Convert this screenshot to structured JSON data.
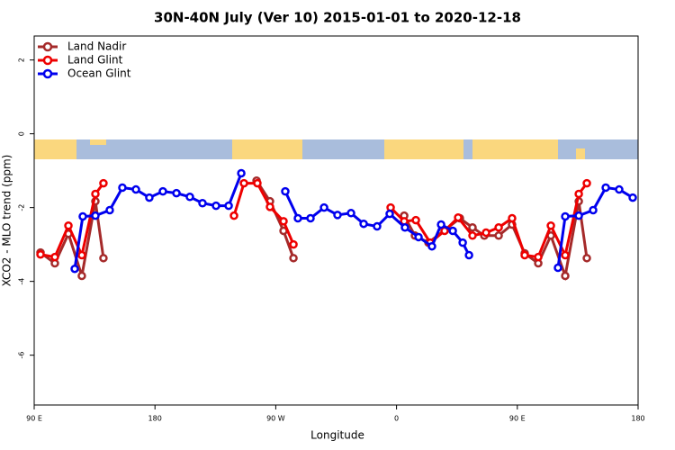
{
  "chart_data": {
    "type": "line",
    "title": "30N-40N July (Ver 10)   2015-01-01 to 2020-12-18",
    "x_label": "Longitude",
    "y_label": "XCO2 - MLO trend (ppm)",
    "xlim": [
      90,
      540
    ],
    "ylim": [
      -7.35,
      2.65
    ],
    "xticks": [
      {
        "value": 90,
        "label": "90 E"
      },
      {
        "value": 180,
        "label": "180"
      },
      {
        "value": 270,
        "label": "90 W"
      },
      {
        "value": 360,
        "label": "0"
      },
      {
        "value": 450,
        "label": "90 E"
      },
      {
        "value": 540,
        "label": "180"
      }
    ],
    "yticks": [
      2,
      0,
      -2,
      -4,
      -6
    ],
    "legend": "top-left",
    "series": [
      {
        "name": "Land Nadir",
        "color": "#a52a2a",
        "x": [
          94.7,
          105.4,
          115.5,
          125.5,
          135.6,
          141.6,
          null,
          255.7,
          265.7,
          275.8,
          283.2,
          null,
          365.7,
          373.7,
          383.8,
          407.2,
          416.6,
          425.4,
          436.1,
          446.1,
          455.5,
          465.6,
          475.0,
          485.7,
          495.8,
          501.8
        ],
        "values": [
          -3.22,
          -3.51,
          -2.71,
          -3.85,
          -1.83,
          -3.37,
          null,
          -1.27,
          -1.83,
          -2.63,
          -3.37,
          null,
          -2.22,
          -2.76,
          -2.95,
          -2.29,
          -2.54,
          -2.76,
          -2.76,
          -2.46,
          -3.24,
          -3.51,
          -2.76,
          -3.85,
          -1.83,
          -3.37
        ]
      },
      {
        "name": "Land Glint",
        "color": "#ee0000",
        "x": [
          94.7,
          105.4,
          115.5,
          125.5,
          135.6,
          141.6,
          null,
          238.9,
          246.3,
          256.3,
          265.7,
          275.8,
          283.2,
          null,
          355.6,
          365.7,
          374.4,
          385.1,
          395.8,
          405.9,
          416.6,
          426.7,
          436.1,
          446.1,
          455.5,
          465.6,
          475.0,
          485.7,
          495.8,
          501.8
        ],
        "values": [
          -3.27,
          -3.34,
          -2.49,
          -3.29,
          -1.63,
          -1.34,
          null,
          -2.22,
          -1.34,
          -1.34,
          -1.98,
          -2.37,
          -3.0,
          null,
          -2.0,
          -2.37,
          -2.34,
          -2.95,
          -2.63,
          -2.27,
          -2.76,
          -2.68,
          -2.54,
          -2.29,
          -3.29,
          -3.34,
          -2.49,
          -3.29,
          -1.63,
          -1.34
        ]
      },
      {
        "name": "Ocean Glint",
        "color": "#0000ee",
        "x": [
          120.2,
          126.2,
          135.6,
          146.3,
          155.7,
          165.8,
          175.8,
          185.9,
          196.0,
          206.0,
          215.4,
          225.5,
          234.9,
          244.3,
          null,
          277.1,
          286.5,
          295.9,
          306.0,
          316.0,
          326.1,
          335.5,
          345.5,
          354.9,
          366.3,
          376.4,
          386.4,
          393.2,
          401.9,
          409.3,
          414.0,
          null,
          480.3,
          485.7,
          495.8,
          506.5,
          515.9,
          525.9,
          536.0
        ],
        "values": [
          -3.66,
          -2.24,
          -2.22,
          -2.07,
          -1.46,
          -1.51,
          -1.73,
          -1.56,
          -1.61,
          -1.71,
          -1.88,
          -1.95,
          -1.95,
          -1.07,
          null,
          -1.56,
          -2.29,
          -2.29,
          -2.0,
          -2.2,
          -2.15,
          -2.44,
          -2.51,
          -2.17,
          -2.54,
          -2.8,
          -3.05,
          -2.46,
          -2.63,
          -2.95,
          -3.29,
          null,
          -3.63,
          -2.24,
          -2.22,
          -2.07,
          -1.46,
          -1.51,
          -1.73
        ]
      }
    ]
  }
}
